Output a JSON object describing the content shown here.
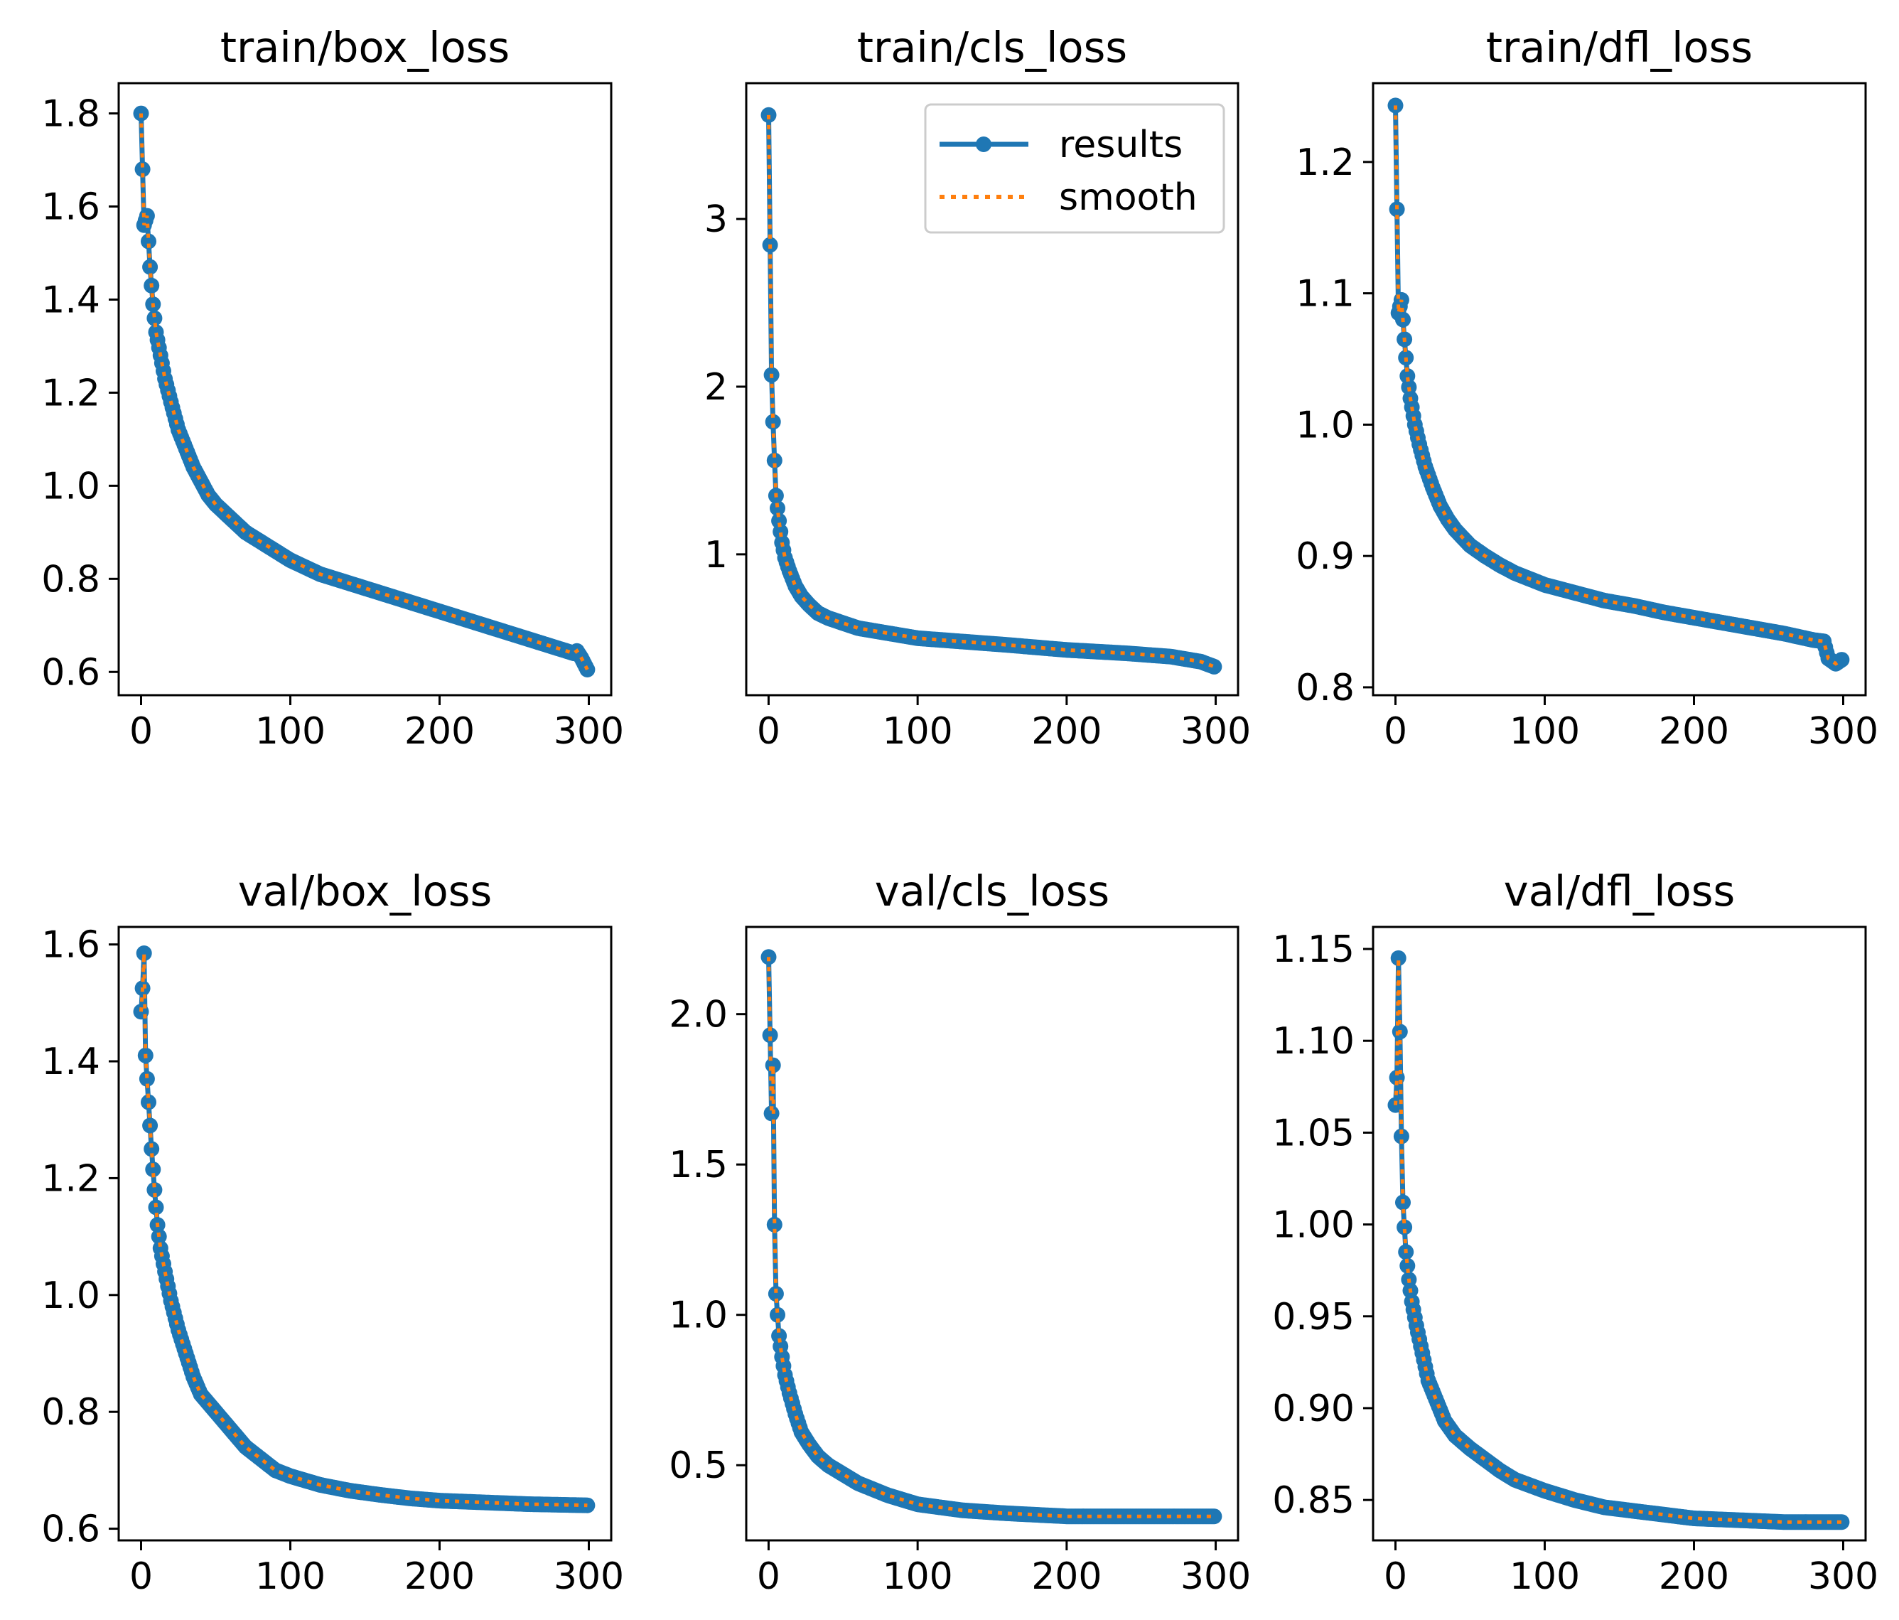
{
  "figure": {
    "colors": {
      "results": "#1f77b4",
      "smooth": "#ff7f0e",
      "frame": "#000000",
      "legend_border": "#cccccc"
    },
    "legend": {
      "entries": [
        {
          "label": "results",
          "style": "solid-with-markers"
        },
        {
          "label": "smooth",
          "style": "dotted"
        }
      ],
      "location": "upper right of train/cls_loss"
    }
  },
  "chart_data": [
    {
      "type": "line",
      "title": "train/box_loss",
      "xlabel": "",
      "ylabel": "",
      "xlim": [
        -15,
        315
      ],
      "ylim": [
        0.55,
        1.865
      ],
      "xticks": [
        0,
        100,
        200,
        300
      ],
      "xtick_labels": [
        "0",
        "100",
        "200",
        "300"
      ],
      "yticks": [
        0.6,
        0.8,
        1.0,
        1.2,
        1.4,
        1.6,
        1.8
      ],
      "ytick_labels": [
        "0.6",
        "0.8",
        "1.0",
        "1.2",
        "1.4",
        "1.6",
        "1.8"
      ],
      "legend": false,
      "anchors": [
        [
          0,
          1.8
        ],
        [
          2,
          1.56
        ],
        [
          4,
          1.58
        ],
        [
          6,
          1.47
        ],
        [
          8,
          1.39
        ],
        [
          10,
          1.33
        ],
        [
          13,
          1.28
        ],
        [
          16,
          1.23
        ],
        [
          20,
          1.18
        ],
        [
          25,
          1.12
        ],
        [
          30,
          1.08
        ],
        [
          35,
          1.04
        ],
        [
          40,
          1.01
        ],
        [
          45,
          0.98
        ],
        [
          50,
          0.96
        ],
        [
          60,
          0.93
        ],
        [
          70,
          0.9
        ],
        [
          80,
          0.88
        ],
        [
          90,
          0.86
        ],
        [
          100,
          0.84
        ],
        [
          120,
          0.81
        ],
        [
          140,
          0.79
        ],
        [
          160,
          0.77
        ],
        [
          180,
          0.75
        ],
        [
          200,
          0.73
        ],
        [
          220,
          0.71
        ],
        [
          240,
          0.69
        ],
        [
          260,
          0.67
        ],
        [
          280,
          0.65
        ],
        [
          290,
          0.64
        ],
        [
          292,
          0.645
        ],
        [
          295,
          0.63
        ],
        [
          299,
          0.605
        ]
      ],
      "series": [
        {
          "name": "results"
        },
        {
          "name": "smooth"
        }
      ]
    },
    {
      "type": "line",
      "title": "train/cls_loss",
      "xlabel": "",
      "ylabel": "",
      "xlim": [
        -15,
        315
      ],
      "ylim": [
        0.16,
        3.81
      ],
      "xticks": [
        0,
        100,
        200,
        300
      ],
      "xtick_labels": [
        "0",
        "100",
        "200",
        "300"
      ],
      "yticks": [
        1,
        2,
        3
      ],
      "ytick_labels": [
        "1",
        "2",
        "3"
      ],
      "legend": true,
      "anchors": [
        [
          0,
          3.62
        ],
        [
          2,
          2.07
        ],
        [
          3,
          1.79
        ],
        [
          4,
          1.56
        ],
        [
          5,
          1.35
        ],
        [
          7,
          1.2
        ],
        [
          9,
          1.07
        ],
        [
          11,
          0.98
        ],
        [
          14,
          0.9
        ],
        [
          18,
          0.81
        ],
        [
          22,
          0.75
        ],
        [
          27,
          0.7
        ],
        [
          33,
          0.65
        ],
        [
          40,
          0.62
        ],
        [
          50,
          0.59
        ],
        [
          60,
          0.56
        ],
        [
          80,
          0.53
        ],
        [
          100,
          0.5
        ],
        [
          130,
          0.48
        ],
        [
          160,
          0.46
        ],
        [
          200,
          0.43
        ],
        [
          240,
          0.41
        ],
        [
          270,
          0.39
        ],
        [
          290,
          0.36
        ],
        [
          299,
          0.33
        ]
      ],
      "series": [
        {
          "name": "results"
        },
        {
          "name": "smooth"
        }
      ]
    },
    {
      "type": "line",
      "title": "train/dfl_loss",
      "xlabel": "",
      "ylabel": "",
      "xlim": [
        -15,
        315
      ],
      "ylim": [
        0.794,
        1.26
      ],
      "xticks": [
        0,
        100,
        200,
        300
      ],
      "xtick_labels": [
        "0",
        "100",
        "200",
        "300"
      ],
      "yticks": [
        0.8,
        0.9,
        1.0,
        1.1,
        1.2
      ],
      "ytick_labels": [
        "0.8",
        "0.9",
        "1.0",
        "1.1",
        "1.2"
      ],
      "legend": false,
      "anchors": [
        [
          0,
          1.243
        ],
        [
          2,
          1.085
        ],
        [
          4,
          1.095
        ],
        [
          6,
          1.065
        ],
        [
          8,
          1.037
        ],
        [
          10,
          1.02
        ],
        [
          13,
          1.0
        ],
        [
          16,
          0.985
        ],
        [
          20,
          0.968
        ],
        [
          25,
          0.952
        ],
        [
          30,
          0.938
        ],
        [
          35,
          0.928
        ],
        [
          40,
          0.92
        ],
        [
          50,
          0.908
        ],
        [
          60,
          0.9
        ],
        [
          70,
          0.893
        ],
        [
          80,
          0.887
        ],
        [
          100,
          0.878
        ],
        [
          120,
          0.872
        ],
        [
          140,
          0.866
        ],
        [
          160,
          0.862
        ],
        [
          180,
          0.857
        ],
        [
          200,
          0.853
        ],
        [
          220,
          0.849
        ],
        [
          240,
          0.845
        ],
        [
          260,
          0.841
        ],
        [
          280,
          0.836
        ],
        [
          287,
          0.835
        ],
        [
          290,
          0.822
        ],
        [
          295,
          0.818
        ],
        [
          299,
          0.821
        ]
      ],
      "series": [
        {
          "name": "results"
        },
        {
          "name": "smooth"
        }
      ]
    },
    {
      "type": "line",
      "title": "val/box_loss",
      "xlabel": "",
      "ylabel": "",
      "xlim": [
        -15,
        315
      ],
      "ylim": [
        0.58,
        1.63
      ],
      "xticks": [
        0,
        100,
        200,
        300
      ],
      "xtick_labels": [
        "0",
        "100",
        "200",
        "300"
      ],
      "yticks": [
        0.6,
        0.8,
        1.0,
        1.2,
        1.4,
        1.6
      ],
      "ytick_labels": [
        "0.6",
        "0.8",
        "1.0",
        "1.2",
        "1.4",
        "1.6"
      ],
      "legend": false,
      "anchors": [
        [
          0,
          1.485
        ],
        [
          1,
          1.525
        ],
        [
          2,
          1.585
        ],
        [
          3,
          1.41
        ],
        [
          5,
          1.33
        ],
        [
          7,
          1.25
        ],
        [
          9,
          1.18
        ],
        [
          11,
          1.12
        ],
        [
          13,
          1.08
        ],
        [
          16,
          1.04
        ],
        [
          20,
          0.99
        ],
        [
          25,
          0.94
        ],
        [
          30,
          0.9
        ],
        [
          35,
          0.86
        ],
        [
          40,
          0.83
        ],
        [
          50,
          0.8
        ],
        [
          60,
          0.77
        ],
        [
          70,
          0.74
        ],
        [
          80,
          0.72
        ],
        [
          90,
          0.7
        ],
        [
          100,
          0.69
        ],
        [
          120,
          0.675
        ],
        [
          140,
          0.665
        ],
        [
          160,
          0.658
        ],
        [
          180,
          0.652
        ],
        [
          200,
          0.648
        ],
        [
          230,
          0.645
        ],
        [
          260,
          0.642
        ],
        [
          280,
          0.641
        ],
        [
          299,
          0.64
        ]
      ],
      "series": [
        {
          "name": "results"
        },
        {
          "name": "smooth"
        }
      ]
    },
    {
      "type": "line",
      "title": "val/cls_loss",
      "xlabel": "",
      "ylabel": "",
      "xlim": [
        -15,
        315
      ],
      "ylim": [
        0.25,
        2.29
      ],
      "xticks": [
        0,
        100,
        200,
        300
      ],
      "xtick_labels": [
        "0",
        "100",
        "200",
        "300"
      ],
      "yticks": [
        0.5,
        1.0,
        1.5,
        2.0
      ],
      "ytick_labels": [
        "0.5",
        "1.0",
        "1.5",
        "2.0"
      ],
      "legend": false,
      "anchors": [
        [
          0,
          2.19
        ],
        [
          2,
          1.67
        ],
        [
          3,
          1.83
        ],
        [
          4,
          1.3
        ],
        [
          5,
          1.07
        ],
        [
          7,
          0.93
        ],
        [
          9,
          0.86
        ],
        [
          11,
          0.8
        ],
        [
          14,
          0.74
        ],
        [
          18,
          0.67
        ],
        [
          22,
          0.61
        ],
        [
          27,
          0.57
        ],
        [
          33,
          0.53
        ],
        [
          40,
          0.5
        ],
        [
          50,
          0.47
        ],
        [
          60,
          0.44
        ],
        [
          80,
          0.4
        ],
        [
          100,
          0.37
        ],
        [
          130,
          0.35
        ],
        [
          160,
          0.34
        ],
        [
          200,
          0.33
        ],
        [
          240,
          0.33
        ],
        [
          270,
          0.33
        ],
        [
          299,
          0.33
        ]
      ],
      "series": [
        {
          "name": "results"
        },
        {
          "name": "smooth"
        }
      ]
    },
    {
      "type": "line",
      "title": "val/dfl_loss",
      "xlabel": "",
      "ylabel": "",
      "xlim": [
        -15,
        315
      ],
      "ylim": [
        0.828,
        1.162
      ],
      "xticks": [
        0,
        100,
        200,
        300
      ],
      "xtick_labels": [
        "0",
        "100",
        "200",
        "300"
      ],
      "yticks": [
        0.85,
        0.9,
        0.95,
        1.0,
        1.05,
        1.1,
        1.15
      ],
      "ytick_labels": [
        "0.85",
        "0.90",
        "0.95",
        "1.00",
        "1.05",
        "1.10",
        "1.15"
      ],
      "legend": false,
      "anchors": [
        [
          0,
          1.065
        ],
        [
          1,
          1.08
        ],
        [
          2,
          1.145
        ],
        [
          3,
          1.105
        ],
        [
          4,
          1.048
        ],
        [
          5,
          1.012
        ],
        [
          7,
          0.985
        ],
        [
          9,
          0.97
        ],
        [
          11,
          0.958
        ],
        [
          14,
          0.945
        ],
        [
          18,
          0.93
        ],
        [
          22,
          0.915
        ],
        [
          27,
          0.905
        ],
        [
          33,
          0.893
        ],
        [
          40,
          0.885
        ],
        [
          50,
          0.878
        ],
        [
          60,
          0.872
        ],
        [
          70,
          0.866
        ],
        [
          80,
          0.861
        ],
        [
          100,
          0.855
        ],
        [
          120,
          0.85
        ],
        [
          140,
          0.846
        ],
        [
          160,
          0.844
        ],
        [
          180,
          0.842
        ],
        [
          200,
          0.84
        ],
        [
          230,
          0.839
        ],
        [
          260,
          0.838
        ],
        [
          299,
          0.838
        ]
      ],
      "series": [
        {
          "name": "results"
        },
        {
          "name": "smooth"
        }
      ]
    }
  ]
}
